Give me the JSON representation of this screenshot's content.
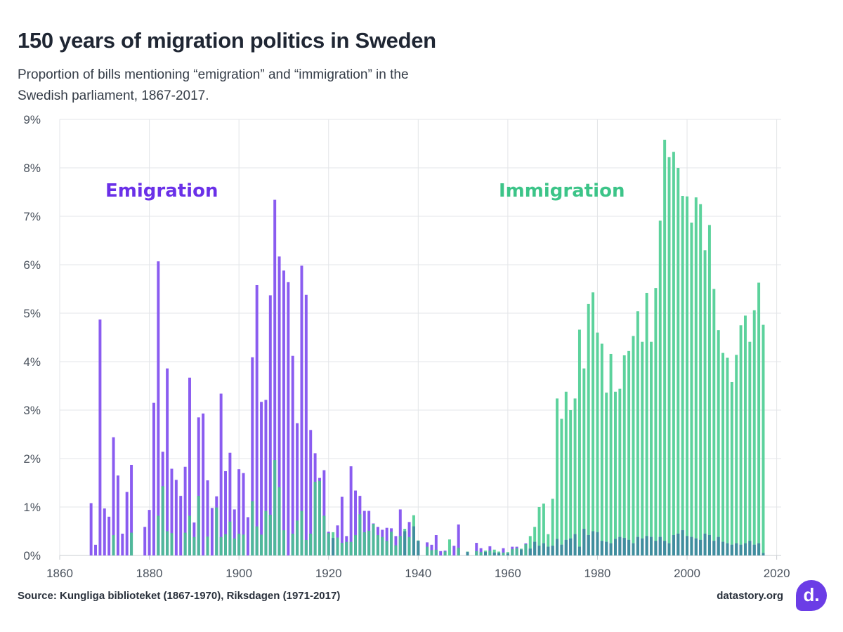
{
  "header": {
    "title": "150 years of migration politics in Sweden",
    "subtitle": "Proportion of bills mentioning “emigration” and “immigration” in the Swedish parliament, 1867-2017."
  },
  "footer": {
    "source": "Source: Kungliga biblioteket (1867-1970), Riksdagen (1971-2017)",
    "site": "datastory.org",
    "logo_text": "d."
  },
  "colors": {
    "emigration": "#8a5cf0",
    "immigration": "#5cd29c",
    "emigration_label": "#6a30e8",
    "immigration_label": "#3cc488",
    "logo_bg": "#6b3de6"
  },
  "chart_data": {
    "type": "bar",
    "x_ticks": [
      "1860",
      "1880",
      "1900",
      "1920",
      "1940",
      "1960",
      "1980",
      "2000",
      "2020"
    ],
    "y_ticks": [
      "0%",
      "1%",
      "2%",
      "3%",
      "4%",
      "5%",
      "6%",
      "7%",
      "8%",
      "9%"
    ],
    "xlim": [
      1860,
      2021
    ],
    "ylim": [
      0,
      9
    ],
    "grid": true,
    "annotations": [
      {
        "text": "Emigration",
        "series": "Emigration"
      },
      {
        "text": "Immigration",
        "series": "Immigration"
      }
    ],
    "series": [
      {
        "name": "Emigration",
        "points": [
          [
            1867,
            1.08
          ],
          [
            1868,
            0.22
          ],
          [
            1869,
            4.87
          ],
          [
            1870,
            0.97
          ],
          [
            1871,
            0.8
          ],
          [
            1872,
            2.44
          ],
          [
            1873,
            1.65
          ],
          [
            1874,
            0.45
          ],
          [
            1875,
            1.31
          ],
          [
            1876,
            1.87
          ],
          [
            1879,
            0.59
          ],
          [
            1880,
            0.94
          ],
          [
            1881,
            3.15
          ],
          [
            1882,
            6.07
          ],
          [
            1883,
            2.14
          ],
          [
            1884,
            3.86
          ],
          [
            1885,
            1.79
          ],
          [
            1886,
            1.56
          ],
          [
            1887,
            1.23
          ],
          [
            1888,
            1.83
          ],
          [
            1889,
            3.67
          ],
          [
            1890,
            0.68
          ],
          [
            1891,
            2.85
          ],
          [
            1892,
            2.93
          ],
          [
            1893,
            1.55
          ],
          [
            1894,
            0.98
          ],
          [
            1895,
            1.22
          ],
          [
            1896,
            3.34
          ],
          [
            1897,
            1.74
          ],
          [
            1898,
            2.12
          ],
          [
            1899,
            0.95
          ],
          [
            1900,
            1.78
          ],
          [
            1901,
            1.7
          ],
          [
            1902,
            0.79
          ],
          [
            1903,
            4.09
          ],
          [
            1904,
            5.58
          ],
          [
            1905,
            3.17
          ],
          [
            1906,
            3.21
          ],
          [
            1907,
            5.37
          ],
          [
            1908,
            7.34
          ],
          [
            1909,
            6.17
          ],
          [
            1910,
            5.88
          ],
          [
            1911,
            5.64
          ],
          [
            1912,
            4.12
          ],
          [
            1913,
            2.73
          ],
          [
            1914,
            5.98
          ],
          [
            1915,
            5.38
          ],
          [
            1916,
            2.59
          ],
          [
            1917,
            2.11
          ],
          [
            1918,
            1.6
          ],
          [
            1919,
            1.76
          ],
          [
            1920,
            0.49
          ],
          [
            1921,
            0.36
          ],
          [
            1922,
            0.62
          ],
          [
            1923,
            1.21
          ],
          [
            1924,
            0.4
          ],
          [
            1925,
            1.84
          ],
          [
            1926,
            1.34
          ],
          [
            1927,
            1.23
          ],
          [
            1928,
            0.92
          ],
          [
            1929,
            0.92
          ],
          [
            1930,
            0.66
          ],
          [
            1931,
            0.59
          ],
          [
            1932,
            0.53
          ],
          [
            1933,
            0.57
          ],
          [
            1934,
            0.56
          ],
          [
            1935,
            0.4
          ],
          [
            1936,
            0.95
          ],
          [
            1937,
            0.5
          ],
          [
            1938,
            0.69
          ],
          [
            1939,
            0.6
          ],
          [
            1940,
            0.3
          ],
          [
            1942,
            0.27
          ],
          [
            1943,
            0.22
          ],
          [
            1944,
            0.42
          ],
          [
            1945,
            0.09
          ],
          [
            1946,
            0.1
          ],
          [
            1948,
            0.2
          ],
          [
            1949,
            0.64
          ],
          [
            1951,
            0.07
          ],
          [
            1953,
            0.26
          ],
          [
            1954,
            0.15
          ],
          [
            1955,
            0.07
          ],
          [
            1956,
            0.19
          ],
          [
            1957,
            0.06
          ],
          [
            1958,
            0.05
          ],
          [
            1959,
            0.15
          ],
          [
            1960,
            0.04
          ],
          [
            1961,
            0.18
          ],
          [
            1962,
            0.18
          ],
          [
            1963,
            0.12
          ],
          [
            1964,
            0.25
          ],
          [
            1965,
            0.14
          ],
          [
            1966,
            0.28
          ],
          [
            1967,
            0.2
          ],
          [
            1968,
            0.25
          ],
          [
            1969,
            0.18
          ],
          [
            1970,
            0.2
          ],
          [
            1971,
            0.34
          ],
          [
            1972,
            0.22
          ],
          [
            1973,
            0.32
          ],
          [
            1974,
            0.35
          ],
          [
            1975,
            0.44
          ],
          [
            1976,
            0.18
          ],
          [
            1977,
            0.55
          ],
          [
            1978,
            0.42
          ],
          [
            1979,
            0.5
          ],
          [
            1980,
            0.48
          ],
          [
            1981,
            0.3
          ],
          [
            1982,
            0.28
          ],
          [
            1983,
            0.25
          ],
          [
            1984,
            0.34
          ],
          [
            1985,
            0.38
          ],
          [
            1986,
            0.36
          ],
          [
            1987,
            0.32
          ],
          [
            1988,
            0.25
          ],
          [
            1989,
            0.38
          ],
          [
            1990,
            0.35
          ],
          [
            1991,
            0.4
          ],
          [
            1992,
            0.38
          ],
          [
            1993,
            0.3
          ],
          [
            1994,
            0.38
          ],
          [
            1995,
            0.3
          ],
          [
            1996,
            0.25
          ],
          [
            1997,
            0.42
          ],
          [
            1998,
            0.45
          ],
          [
            1999,
            0.52
          ],
          [
            2000,
            0.4
          ],
          [
            2001,
            0.38
          ],
          [
            2002,
            0.35
          ],
          [
            2003,
            0.32
          ],
          [
            2004,
            0.45
          ],
          [
            2005,
            0.42
          ],
          [
            2006,
            0.3
          ],
          [
            2007,
            0.38
          ],
          [
            2008,
            0.28
          ],
          [
            2009,
            0.25
          ],
          [
            2010,
            0.22
          ],
          [
            2011,
            0.25
          ],
          [
            2012,
            0.22
          ],
          [
            2013,
            0.25
          ],
          [
            2014,
            0.3
          ],
          [
            2015,
            0.22
          ],
          [
            2016,
            0.25
          ],
          [
            2017,
            0.05
          ]
        ]
      },
      {
        "name": "Immigration",
        "points": [
          [
            1872,
            0.42
          ],
          [
            1876,
            0.47
          ],
          [
            1882,
            0.82
          ],
          [
            1883,
            1.43
          ],
          [
            1884,
            0.5
          ],
          [
            1885,
            0.46
          ],
          [
            1888,
            0.47
          ],
          [
            1889,
            0.82
          ],
          [
            1890,
            0.38
          ],
          [
            1891,
            1.23
          ],
          [
            1893,
            0.39
          ],
          [
            1895,
            0.99
          ],
          [
            1896,
            0.38
          ],
          [
            1897,
            0.44
          ],
          [
            1898,
            0.7
          ],
          [
            1899,
            0.35
          ],
          [
            1900,
            0.45
          ],
          [
            1901,
            0.43
          ],
          [
            1903,
            1.12
          ],
          [
            1904,
            0.6
          ],
          [
            1905,
            0.43
          ],
          [
            1906,
            0.92
          ],
          [
            1907,
            0.84
          ],
          [
            1908,
            1.97
          ],
          [
            1909,
            1.41
          ],
          [
            1910,
            0.52
          ],
          [
            1912,
            0.45
          ],
          [
            1913,
            0.72
          ],
          [
            1914,
            0.92
          ],
          [
            1915,
            0.32
          ],
          [
            1916,
            0.45
          ],
          [
            1917,
            1.52
          ],
          [
            1918,
            1.54
          ],
          [
            1919,
            0.82
          ],
          [
            1920,
            0.46
          ],
          [
            1921,
            0.48
          ],
          [
            1922,
            0.37
          ],
          [
            1923,
            0.26
          ],
          [
            1924,
            0.28
          ],
          [
            1925,
            0.28
          ],
          [
            1926,
            0.42
          ],
          [
            1927,
            0.85
          ],
          [
            1928,
            0.48
          ],
          [
            1929,
            0.51
          ],
          [
            1930,
            0.65
          ],
          [
            1931,
            0.42
          ],
          [
            1932,
            0.38
          ],
          [
            1933,
            0.3
          ],
          [
            1934,
            0.49
          ],
          [
            1935,
            0.21
          ],
          [
            1936,
            0.4
          ],
          [
            1937,
            0.55
          ],
          [
            1938,
            0.38
          ],
          [
            1939,
            0.83
          ],
          [
            1940,
            0.31
          ],
          [
            1942,
            0.18
          ],
          [
            1943,
            0.11
          ],
          [
            1944,
            0.12
          ],
          [
            1946,
            0.08
          ],
          [
            1947,
            0.33
          ],
          [
            1949,
            0.16
          ],
          [
            1951,
            0.08
          ],
          [
            1953,
            0.09
          ],
          [
            1954,
            0.07
          ],
          [
            1955,
            0.1
          ],
          [
            1956,
            0.1
          ],
          [
            1957,
            0.12
          ],
          [
            1958,
            0.08
          ],
          [
            1959,
            0.06
          ],
          [
            1960,
            0.07
          ],
          [
            1961,
            0.13
          ],
          [
            1962,
            0.15
          ],
          [
            1963,
            0.14
          ],
          [
            1964,
            0.23
          ],
          [
            1965,
            0.4
          ],
          [
            1966,
            0.59
          ],
          [
            1967,
            1.0
          ],
          [
            1968,
            1.07
          ],
          [
            1969,
            0.44
          ],
          [
            1970,
            1.17
          ],
          [
            1971,
            3.24
          ],
          [
            1972,
            2.82
          ],
          [
            1973,
            3.38
          ],
          [
            1974,
            3.0
          ],
          [
            1975,
            3.24
          ],
          [
            1976,
            4.66
          ],
          [
            1977,
            3.86
          ],
          [
            1978,
            5.19
          ],
          [
            1979,
            5.43
          ],
          [
            1980,
            4.6
          ],
          [
            1981,
            4.37
          ],
          [
            1982,
            3.36
          ],
          [
            1983,
            4.16
          ],
          [
            1984,
            3.38
          ],
          [
            1985,
            3.44
          ],
          [
            1986,
            4.13
          ],
          [
            1987,
            4.22
          ],
          [
            1988,
            4.53
          ],
          [
            1989,
            5.04
          ],
          [
            1990,
            4.41
          ],
          [
            1991,
            5.42
          ],
          [
            1992,
            4.41
          ],
          [
            1993,
            5.52
          ],
          [
            1994,
            6.91
          ],
          [
            1995,
            8.58
          ],
          [
            1996,
            8.22
          ],
          [
            1997,
            8.33
          ],
          [
            1998,
            8.0
          ],
          [
            1999,
            7.42
          ],
          [
            2000,
            7.41
          ],
          [
            2001,
            6.87
          ],
          [
            2002,
            7.39
          ],
          [
            2003,
            7.25
          ],
          [
            2004,
            6.3
          ],
          [
            2005,
            6.82
          ],
          [
            2006,
            5.5
          ],
          [
            2007,
            4.65
          ],
          [
            2008,
            4.18
          ],
          [
            2009,
            4.08
          ],
          [
            2010,
            3.58
          ],
          [
            2011,
            4.14
          ],
          [
            2012,
            4.75
          ],
          [
            2013,
            4.95
          ],
          [
            2014,
            4.41
          ],
          [
            2015,
            5.06
          ],
          [
            2016,
            5.63
          ],
          [
            2017,
            4.76
          ]
        ]
      }
    ]
  }
}
